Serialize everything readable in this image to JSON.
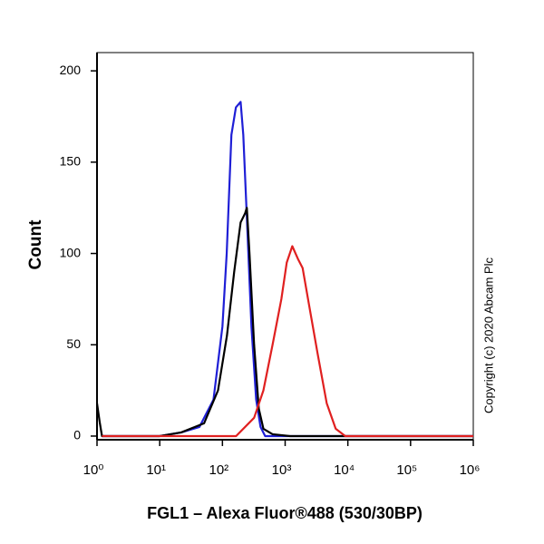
{
  "chart_data": {
    "type": "line",
    "xlabel": "FGL1 – Alexa Fluor®488 (530/30BP)",
    "ylabel": "Count",
    "annotation": "Copyright (c) 2020 Abcam Plc",
    "xscale": "log",
    "xlim": [
      1,
      1000000
    ],
    "ylim": [
      -2,
      210
    ],
    "xticks": [
      {
        "value": 1,
        "label": "10⁰"
      },
      {
        "value": 10,
        "label": "10¹"
      },
      {
        "value": 100,
        "label": "10²"
      },
      {
        "value": 1000,
        "label": "10³"
      },
      {
        "value": 10000,
        "label": "10⁴"
      },
      {
        "value": 100000,
        "label": "10⁵"
      },
      {
        "value": 1000000,
        "label": "10⁶"
      }
    ],
    "yticks": [
      0,
      50,
      100,
      150,
      200
    ],
    "series": [
      {
        "color": "#1f1fd6",
        "x": [
          1.2,
          10,
          22,
          43,
          72,
          100,
          117,
          139,
          164,
          195,
          215,
          245,
          290,
          345,
          405,
          480,
          1000000
        ],
        "values": [
          0,
          0,
          2,
          5,
          20,
          60,
          100,
          165,
          180,
          183,
          165,
          120,
          60,
          20,
          5,
          0,
          0
        ]
      },
      {
        "color": "#000000",
        "x": [
          1,
          1.1,
          1.2,
          10,
          22,
          51,
          85,
          118,
          154,
          195,
          230,
          245,
          270,
          320,
          380,
          450,
          630,
          1200,
          1000000
        ],
        "values": [
          18,
          8,
          0,
          0,
          2,
          7,
          25,
          55,
          90,
          117,
          122,
          125,
          100,
          50,
          15,
          4,
          1,
          0,
          0
        ]
      },
      {
        "color": "#e02020",
        "x": [
          1.2,
          165,
          320,
          450,
          630,
          870,
          1060,
          1300,
          1600,
          1900,
          2400,
          3300,
          4600,
          6400,
          9100,
          1000000
        ],
        "values": [
          0,
          0,
          10,
          25,
          50,
          75,
          95,
          104,
          97,
          92,
          72,
          45,
          18,
          4,
          0,
          0
        ]
      }
    ]
  }
}
